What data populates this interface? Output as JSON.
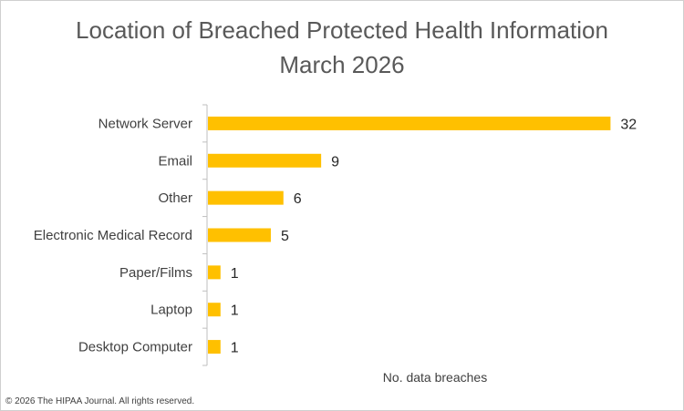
{
  "chart_data": {
    "type": "bar",
    "orientation": "horizontal",
    "title": "Location of Breached Protected Health Information",
    "subtitle": "March 2026",
    "xlabel": "No. data breaches",
    "ylabel": "",
    "categories": [
      "Network Server",
      "Email",
      "Other",
      "Electronic Medical Record",
      "Paper/Films",
      "Laptop",
      "Desktop Computer"
    ],
    "values": [
      32,
      9,
      6,
      5,
      1,
      1,
      1
    ],
    "xlim": [
      0,
      34
    ],
    "bar_color": "#FFC000",
    "data_labels": true,
    "grid": false,
    "legend": "none"
  },
  "footer": {
    "copyright": "© 2026 The HIPAA Journal. All rights reserved."
  }
}
